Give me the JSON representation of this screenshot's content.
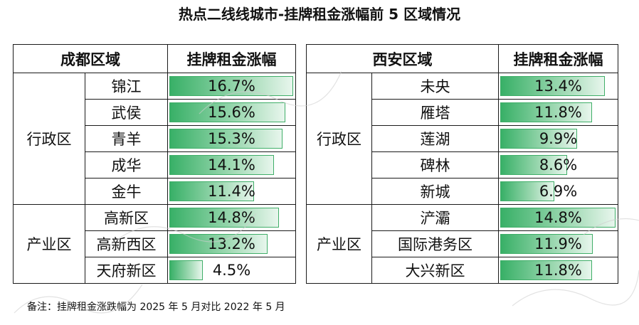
{
  "title": "热点二线线城市-挂牌租金涨幅前 5 区域情况",
  "footnote": "备注：挂牌租金涨跌幅为 2025 年 5 月对比 2022 年 5 月",
  "chart_data": [
    {
      "type": "table",
      "header": [
        "成都区域",
        "挂牌租金涨幅"
      ],
      "groups": [
        {
          "category": "行政区",
          "rows": [
            {
              "name": "锦江",
              "value": 16.7,
              "label": "16.7%"
            },
            {
              "name": "武侯",
              "value": 15.6,
              "label": "15.6%"
            },
            {
              "name": "青羊",
              "value": 15.3,
              "label": "15.3%"
            },
            {
              "name": "成华",
              "value": 14.1,
              "label": "14.1%"
            },
            {
              "name": "金牛",
              "value": 11.4,
              "label": "11.4%"
            }
          ]
        },
        {
          "category": "产业区",
          "rows": [
            {
              "name": "高新区",
              "value": 14.8,
              "label": "14.8%"
            },
            {
              "name": "高新西区",
              "value": 13.2,
              "label": "13.2%"
            },
            {
              "name": "天府新区",
              "value": 4.5,
              "label": "4.5%"
            }
          ]
        }
      ],
      "bar_max": 16.7
    },
    {
      "type": "table",
      "header": [
        "西安区域",
        "挂牌租金涨幅"
      ],
      "groups": [
        {
          "category": "行政区",
          "rows": [
            {
              "name": "未央",
              "value": 13.4,
              "label": "13.4%"
            },
            {
              "name": "雁塔",
              "value": 11.8,
              "label": "11.8%"
            },
            {
              "name": "莲湖",
              "value": 9.9,
              "label": "9.9%"
            },
            {
              "name": "碑林",
              "value": 8.6,
              "label": "8.6%"
            },
            {
              "name": "新城",
              "value": 6.9,
              "label": "6.9%"
            }
          ]
        },
        {
          "category": "产业区",
          "rows": [
            {
              "name": "浐灞",
              "value": 14.8,
              "label": "14.8%"
            },
            {
              "name": "国际港务区",
              "value": 11.9,
              "label": "11.9%"
            },
            {
              "name": "大兴新区",
              "value": 11.8,
              "label": "11.8%"
            }
          ]
        }
      ],
      "bar_max": 14.8
    }
  ],
  "colors": {
    "bar": "#38b067",
    "bar_light": "#e8f6ed",
    "border": "#1a1a1a"
  }
}
